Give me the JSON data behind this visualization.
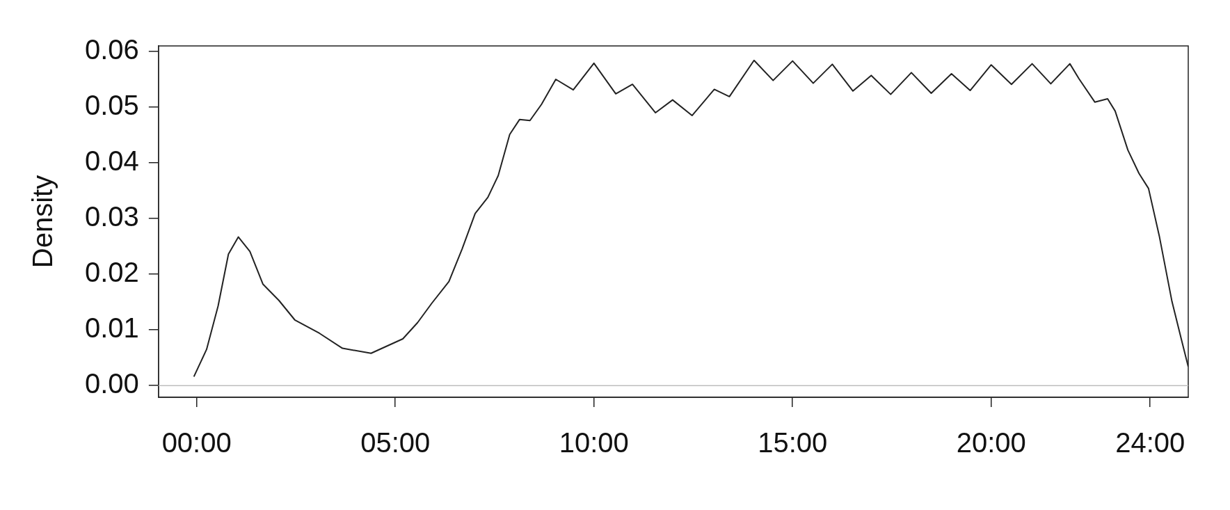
{
  "chart_data": {
    "type": "line",
    "ylabel": "Density",
    "x": [
      -0.07,
      0.25,
      0.54,
      0.8,
      1.05,
      1.34,
      1.67,
      2.07,
      2.47,
      3.09,
      3.67,
      4.39,
      5.19,
      5.56,
      5.92,
      6.35,
      6.68,
      7.01,
      7.33,
      7.59,
      7.88,
      8.13,
      8.39,
      8.68,
      9.04,
      9.48,
      10.0,
      10.55,
      10.97,
      11.55,
      11.98,
      12.47,
      13.03,
      13.41,
      14.03,
      14.51,
      15.0,
      15.52,
      16.0,
      16.52,
      16.98,
      17.47,
      17.99,
      18.49,
      19.0,
      19.47,
      20.0,
      20.51,
      21.03,
      21.5,
      21.98,
      22.21,
      22.61,
      22.93,
      23.12,
      23.44,
      23.72,
      23.96,
      24.23,
      24.55,
      24.79,
      24.96
    ],
    "series": [
      {
        "color": "#222222",
        "values": [
          0.0016,
          0.0065,
          0.0143,
          0.0236,
          0.0267,
          0.0241,
          0.0182,
          0.0153,
          0.0118,
          0.0094,
          0.0067,
          0.0058,
          0.0084,
          0.0113,
          0.0148,
          0.0187,
          0.0245,
          0.0309,
          0.0338,
          0.0377,
          0.0451,
          0.0478,
          0.0476,
          0.0505,
          0.055,
          0.0531,
          0.0579,
          0.0524,
          0.0541,
          0.049,
          0.0513,
          0.0485,
          0.0532,
          0.0519,
          0.0584,
          0.0548,
          0.0583,
          0.0543,
          0.0577,
          0.0529,
          0.0557,
          0.0523,
          0.0562,
          0.0525,
          0.056,
          0.053,
          0.0576,
          0.0541,
          0.0578,
          0.0542,
          0.0578,
          0.0551,
          0.0509,
          0.0515,
          0.0493,
          0.0423,
          0.0381,
          0.0354,
          0.0269,
          0.0151,
          0.0082,
          0.0034
        ]
      }
    ],
    "xlim": [
      -0.96,
      24.96
    ],
    "ylim": [
      -0.0021,
      0.061
    ],
    "xticks": [
      {
        "value": 0,
        "label": "00:00"
      },
      {
        "value": 5,
        "label": "05:00"
      },
      {
        "value": 10,
        "label": "10:00"
      },
      {
        "value": 15,
        "label": "15:00"
      },
      {
        "value": 20,
        "label": "20:00"
      },
      {
        "value": 24,
        "label": "24:00"
      }
    ],
    "yticks": [
      {
        "value": 0,
        "label": "0.00"
      },
      {
        "value": 0.01,
        "label": "0.01"
      },
      {
        "value": 0.02,
        "label": "0.02"
      },
      {
        "value": 0.03,
        "label": "0.03"
      },
      {
        "value": 0.04,
        "label": "0.04"
      },
      {
        "value": 0.05,
        "label": "0.05"
      },
      {
        "value": 0.06,
        "label": "0.06"
      }
    ],
    "ref_lines": [
      {
        "axis": "y",
        "value": 0,
        "color": "#bebebe"
      }
    ],
    "grid": false,
    "legend": false,
    "marker": "none",
    "line_style": "solid"
  }
}
